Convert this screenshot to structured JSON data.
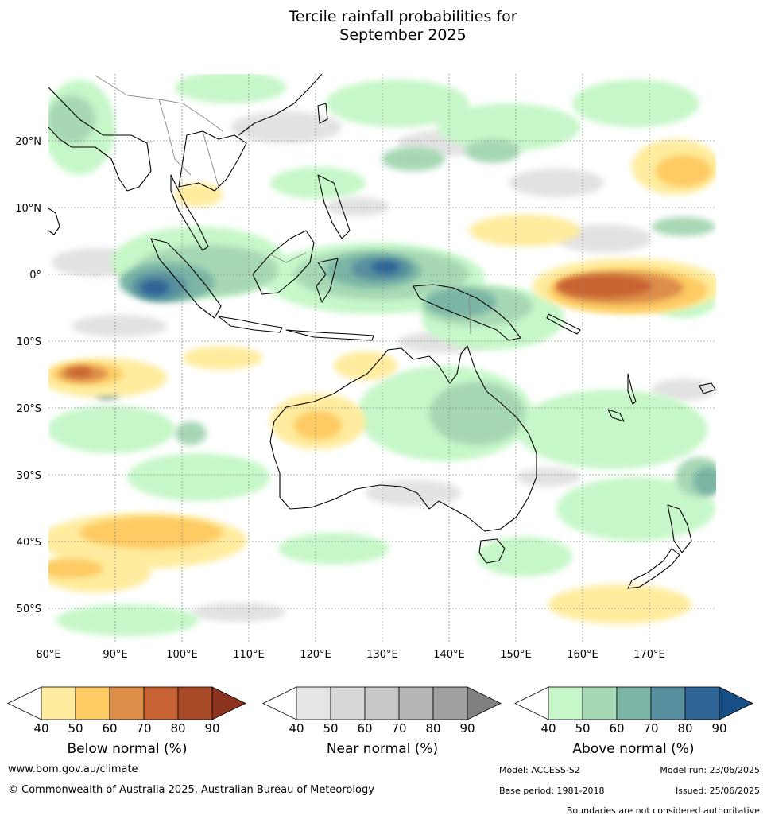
{
  "title": {
    "line1": "Tercile rainfall probabilities for",
    "line2": "September 2025"
  },
  "map": {
    "lon_labels": [
      "80°E",
      "90°E",
      "100°E",
      "110°E",
      "120°E",
      "130°E",
      "140°E",
      "150°E",
      "160°E",
      "170°E"
    ],
    "lat_labels": [
      "20°N",
      "10°N",
      "0°",
      "10°S",
      "20°S",
      "30°S",
      "40°S",
      "50°S"
    ],
    "lon_range": [
      80,
      180
    ],
    "lat_range": [
      -55,
      30
    ]
  },
  "colorbars": [
    {
      "id": "below",
      "title": "Below normal (%)",
      "ticks": [
        "40",
        "50",
        "60",
        "70",
        "80",
        "90"
      ],
      "colors": [
        "#ffffff",
        "#ffec9e",
        "#fdca64",
        "#dd8e48",
        "#c86433",
        "#a94a28",
        "#8c3320"
      ]
    },
    {
      "id": "near",
      "title": "Near normal (%)",
      "ticks": [
        "40",
        "50",
        "60",
        "70",
        "80",
        "90"
      ],
      "colors": [
        "#ffffff",
        "#e6e6e6",
        "#d8d8d8",
        "#c8c8c8",
        "#b5b5b5",
        "#a0a0a0",
        "#808080"
      ]
    },
    {
      "id": "above",
      "title": "Above normal (%)",
      "ticks": [
        "40",
        "50",
        "60",
        "70",
        "80",
        "90"
      ],
      "colors": [
        "#ffffff",
        "#c6f7c8",
        "#a7d8b5",
        "#7ab5a5",
        "#5890a0",
        "#2f6596",
        "#164f85"
      ]
    }
  ],
  "footer": {
    "website": "www.bom.gov.au/climate",
    "copyright": "© Commonwealth of Australia 2025, Australian Bureau of Meteorology",
    "model": "Model: ACCESS-S2",
    "model_run": "Model run: 23/06/2025",
    "base_period": "Base period: 1981-2018",
    "issued": "Issued: 25/06/2025",
    "disclaimer": "Boundaries are not considered authoritative"
  }
}
